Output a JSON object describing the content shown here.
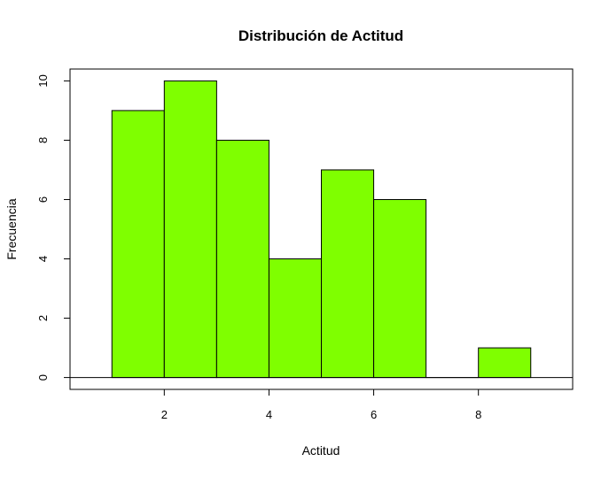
{
  "chart_data": {
    "type": "bar",
    "subtype": "histogram",
    "title": "Distribución de Actitud",
    "xlabel": "Actitud",
    "ylabel": "Frecuencia",
    "bin_edges": [
      1,
      2,
      3,
      4,
      5,
      6,
      7,
      8,
      9
    ],
    "values": [
      9,
      10,
      8,
      4,
      7,
      6,
      0,
      1
    ],
    "xlim": [
      0.2,
      9.8
    ],
    "ylim": [
      -0.4,
      10.4
    ],
    "x_ticks": [
      "2",
      "4",
      "6",
      "8"
    ],
    "y_ticks": [
      "0",
      "2",
      "4",
      "6",
      "8",
      "10"
    ],
    "bar_color": "#7FFF00",
    "grid": false
  }
}
